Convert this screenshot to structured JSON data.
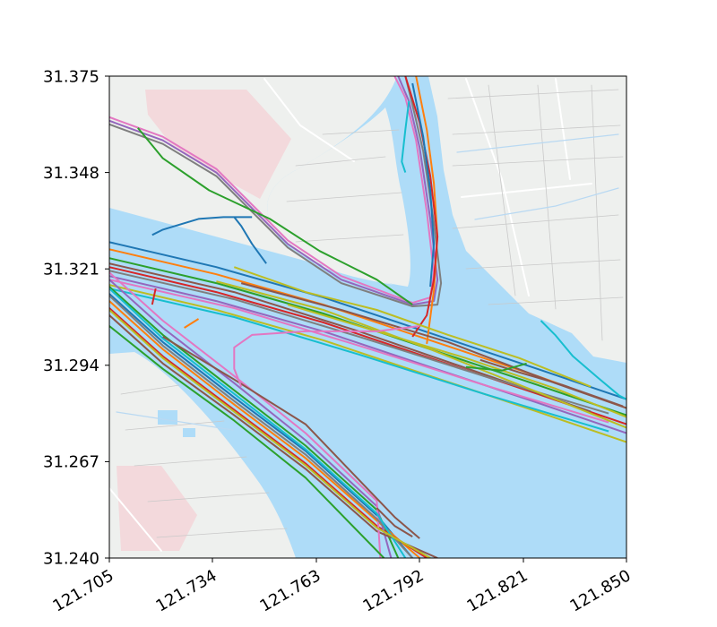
{
  "map": {
    "colors": {
      "water": "#aedcf8",
      "land": "#eef0ee",
      "industrial": "#f3d9dc",
      "road": "#ffffff",
      "minor_road": "#c9c9c9",
      "waterway": "#b9d9f2",
      "axis": "#000000"
    },
    "x_ticks": [
      "121.705",
      "121.734",
      "121.763",
      "121.792",
      "121.821",
      "121.850"
    ],
    "y_ticks": [
      "31.375",
      "31.348",
      "31.321",
      "31.294",
      "31.267",
      "31.240"
    ]
  },
  "chart_data": {
    "type": "line",
    "title": "",
    "xlabel": "",
    "ylabel": "",
    "xlim": [
      121.705,
      121.85
    ],
    "ylim": [
      31.24,
      31.375
    ],
    "grid": false,
    "legend": "none",
    "palette": [
      "#1f77b4",
      "#ff7f0e",
      "#2ca02c",
      "#d62728",
      "#9467bd",
      "#8c564b",
      "#e377c2",
      "#7f7f7f",
      "#bcbd22",
      "#17becf"
    ],
    "series": [
      {
        "color": "#ff7f0e",
        "x": [
          121.705,
          121.735,
          121.765,
          121.795,
          121.825,
          121.85
        ],
        "y": [
          31.3265,
          31.3195,
          31.311,
          31.301,
          31.291,
          31.282
        ]
      },
      {
        "color": "#2ca02c",
        "x": [
          121.705,
          121.735,
          121.765,
          121.795,
          121.825,
          121.85
        ],
        "y": [
          31.324,
          31.317,
          31.3085,
          31.2985,
          31.2885,
          31.28
        ]
      },
      {
        "color": "#d62728",
        "x": [
          121.705,
          121.735,
          121.765,
          121.795,
          121.825,
          121.85
        ],
        "y": [
          31.3215,
          31.3145,
          31.306,
          31.296,
          31.286,
          31.2775
        ]
      },
      {
        "color": "#9467bd",
        "x": [
          121.705,
          121.735,
          121.765,
          121.795,
          121.825,
          121.85
        ],
        "y": [
          31.319,
          31.312,
          31.3035,
          31.2935,
          31.2835,
          31.275
        ]
      },
      {
        "color": "#bcbd22",
        "x": [
          121.705,
          121.735,
          121.765,
          121.795,
          121.825,
          121.85
        ],
        "y": [
          31.3165,
          31.3095,
          31.301,
          31.291,
          31.281,
          31.2725
        ]
      },
      {
        "color": "#1f77b4",
        "x": [
          121.705,
          121.735,
          121.765,
          121.795,
          121.825,
          121.85
        ],
        "y": [
          31.3285,
          31.3215,
          31.313,
          31.303,
          31.293,
          31.2845
        ]
      },
      {
        "color": "#8c564b",
        "x": [
          121.705,
          121.74,
          121.775,
          121.81,
          121.84
        ],
        "y": [
          31.3225,
          31.3145,
          31.3035,
          31.2915,
          31.281
        ]
      },
      {
        "color": "#e377c2",
        "x": [
          121.705,
          121.74,
          121.775,
          121.81,
          121.845
        ],
        "y": [
          31.318,
          31.31,
          31.2995,
          31.2885,
          31.278
        ]
      },
      {
        "color": "#7f7f7f",
        "x": [
          121.705,
          121.74,
          121.775,
          121.81,
          121.845
        ],
        "y": [
          31.3205,
          31.3125,
          31.302,
          31.291,
          31.2805
        ]
      },
      {
        "color": "#17becf",
        "x": [
          121.705,
          121.74,
          121.775,
          121.81,
          121.845
        ],
        "y": [
          31.3155,
          31.3075,
          31.297,
          31.286,
          31.2755
        ]
      },
      {
        "color": "#bcbd22",
        "x": [
          121.735,
          121.765,
          121.795,
          121.825,
          121.85
        ],
        "y": [
          31.3175,
          31.3095,
          31.2985,
          31.2865,
          31.2765
        ]
      },
      {
        "color": "#bcbd22",
        "x": [
          121.755,
          121.78,
          121.805,
          121.83,
          121.85
        ],
        "y": [
          31.311,
          31.3035,
          31.296,
          31.2875,
          31.2795
        ]
      },
      {
        "color": "#1f77b4",
        "x": [
          121.705,
          121.72,
          121.74,
          121.76,
          121.78,
          121.79
        ],
        "y": [
          31.314,
          31.3005,
          31.285,
          31.27,
          31.252,
          31.24
        ]
      },
      {
        "color": "#ff7f0e",
        "x": [
          121.705,
          121.72,
          121.74,
          121.76,
          121.78,
          121.792
        ],
        "y": [
          31.312,
          31.2985,
          31.283,
          31.268,
          31.2505,
          31.24
        ]
      },
      {
        "color": "#2ca02c",
        "x": [
          121.705,
          121.72,
          121.74,
          121.76,
          121.78,
          121.786
        ],
        "y": [
          31.316,
          31.3025,
          31.287,
          31.2715,
          31.2535,
          31.24
        ]
      },
      {
        "color": "#d62728",
        "x": [
          121.705,
          121.72,
          121.74,
          121.76,
          121.78,
          121.794
        ],
        "y": [
          31.31,
          31.2965,
          31.2815,
          31.2665,
          31.249,
          31.24
        ]
      },
      {
        "color": "#9467bd",
        "x": [
          121.705,
          121.72,
          121.74,
          121.76,
          121.78,
          121.784
        ],
        "y": [
          31.318,
          31.3045,
          31.289,
          31.273,
          31.2545,
          31.24
        ]
      },
      {
        "color": "#8c564b",
        "x": [
          121.705,
          121.72,
          121.74,
          121.76,
          121.78,
          121.797
        ],
        "y": [
          31.308,
          31.2945,
          31.28,
          31.265,
          31.2475,
          31.24
        ]
      },
      {
        "color": "#e377c2",
        "x": [
          121.705,
          121.72,
          121.74,
          121.76,
          121.78,
          121.781
        ],
        "y": [
          31.32,
          31.3065,
          31.291,
          31.275,
          31.256,
          31.24
        ]
      },
      {
        "color": "#7f7f7f",
        "x": [
          121.705,
          121.72,
          121.74,
          121.76,
          121.78,
          121.79
        ],
        "y": [
          31.3135,
          31.2995,
          31.284,
          31.269,
          31.251,
          31.24
        ]
      },
      {
        "color": "#17becf",
        "x": [
          121.705,
          121.72,
          121.74,
          121.76,
          121.78,
          121.788
        ],
        "y": [
          31.3155,
          31.3015,
          31.286,
          31.2705,
          31.2525,
          31.24
        ]
      },
      {
        "color": "#bcbd22",
        "x": [
          121.705,
          121.72,
          121.74,
          121.76,
          121.78,
          121.795
        ],
        "y": [
          31.3095,
          31.296,
          31.281,
          31.266,
          31.2485,
          31.24
        ]
      },
      {
        "color": "#2ca02c",
        "x": [
          121.705,
          121.72,
          121.74,
          121.76,
          121.782
        ],
        "y": [
          31.305,
          31.293,
          31.2785,
          31.2625,
          31.24
        ]
      },
      {
        "color": "#8c564b",
        "x": [
          121.72,
          121.74,
          121.76,
          121.785,
          121.792
        ],
        "y": [
          31.302,
          31.29,
          31.2775,
          31.2515,
          31.2455
        ]
      },
      {
        "color": "#9467bd",
        "x": [
          121.705,
          121.72,
          121.735,
          121.745,
          121.755,
          121.77,
          121.79,
          121.796,
          121.797,
          121.795,
          121.792,
          121.789,
          121.786
        ],
        "y": [
          31.3625,
          31.357,
          31.348,
          31.338,
          31.328,
          31.318,
          31.311,
          31.312,
          31.318,
          31.335,
          31.355,
          31.368,
          31.375
        ]
      },
      {
        "color": "#e377c2",
        "x": [
          121.705,
          121.72,
          121.735,
          121.745,
          121.755,
          121.77,
          121.79,
          121.795,
          121.796,
          121.794,
          121.791,
          121.788,
          121.785
        ],
        "y": [
          31.3635,
          31.358,
          31.349,
          31.339,
          31.329,
          31.319,
          31.3115,
          31.313,
          31.32,
          31.337,
          31.357,
          31.369,
          31.375
        ]
      },
      {
        "color": "#7f7f7f",
        "x": [
          121.705,
          121.72,
          121.735,
          121.745,
          121.755,
          121.77,
          121.79,
          121.797,
          121.798,
          121.796,
          121.793,
          121.79,
          121.788
        ],
        "y": [
          31.3615,
          31.356,
          31.347,
          31.337,
          31.327,
          31.317,
          31.3105,
          31.311,
          31.317,
          31.334,
          31.354,
          31.367,
          31.375
        ]
      },
      {
        "color": "#ff7f0e",
        "x": [
          121.791,
          121.794,
          121.796,
          121.797,
          121.796,
          121.794
        ],
        "y": [
          31.375,
          31.36,
          31.345,
          31.33,
          31.315,
          31.3
        ]
      },
      {
        "color": "#d62728",
        "x": [
          121.788,
          121.792,
          121.795,
          121.797,
          121.796,
          121.794,
          121.79
        ],
        "y": [
          31.375,
          31.362,
          31.347,
          31.33,
          31.318,
          31.308,
          31.302
        ]
      },
      {
        "color": "#1f77b4",
        "x": [
          121.79,
          121.793,
          121.795,
          121.796,
          121.795
        ],
        "y": [
          31.373,
          31.358,
          31.343,
          31.328,
          31.316
        ]
      },
      {
        "color": "#17becf",
        "x": [
          121.789,
          121.788,
          121.787,
          121.788
        ],
        "y": [
          31.368,
          31.36,
          31.351,
          31.348
        ]
      },
      {
        "color": "#2ca02c",
        "x": [
          121.713,
          121.72,
          121.733,
          121.75,
          121.764,
          121.78,
          121.79
        ],
        "y": [
          31.3605,
          31.352,
          31.343,
          31.335,
          31.326,
          31.318,
          31.311
        ]
      },
      {
        "color": "#1f77b4",
        "x": [
          121.717,
          121.72,
          121.73,
          121.737,
          121.745
        ],
        "y": [
          31.3305,
          31.332,
          31.335,
          31.3355,
          31.3355
        ]
      },
      {
        "color": "#1f77b4",
        "x": [
          121.74,
          121.742,
          121.745,
          121.749
        ],
        "y": [
          31.3355,
          31.333,
          31.328,
          31.3225
        ]
      },
      {
        "color": "#bcbd22",
        "x": [
          121.74,
          121.76,
          121.78,
          121.8,
          121.82,
          121.84
        ],
        "y": [
          31.3215,
          31.3145,
          31.3095,
          31.3025,
          31.296,
          31.288
        ]
      },
      {
        "color": "#8c564b",
        "x": [
          121.742,
          121.77,
          121.8,
          121.83,
          121.85
        ],
        "y": [
          31.317,
          31.3095,
          31.3005,
          31.289,
          31.282
        ]
      },
      {
        "color": "#e377c2",
        "x": [
          121.742,
          121.74,
          121.74,
          121.745,
          121.76,
          121.78,
          121.792
        ],
        "y": [
          31.288,
          31.293,
          31.299,
          31.3025,
          31.3035,
          31.3035,
          31.305
        ]
      },
      {
        "color": "#8c564b",
        "x": [
          121.809,
          121.82,
          121.832,
          121.842,
          121.849
        ],
        "y": [
          31.2955,
          31.292,
          31.2885,
          31.285,
          31.2825
        ]
      },
      {
        "color": "#17becf",
        "x": [
          121.826,
          121.83,
          121.835,
          121.842,
          121.848,
          121.85
        ],
        "y": [
          31.3065,
          31.3025,
          31.2965,
          31.2905,
          31.2855,
          31.2845
        ]
      },
      {
        "color": "#2ca02c",
        "x": [
          121.805,
          121.815,
          121.822
        ],
        "y": [
          31.2935,
          31.2925,
          31.2945
        ]
      },
      {
        "color": "#ff7f0e",
        "x": [
          121.726,
          121.73
        ],
        "y": [
          31.3045,
          31.307
        ]
      },
      {
        "color": "#d62728",
        "x": [
          121.717,
          121.718
        ],
        "y": [
          31.311,
          31.3155
        ]
      },
      {
        "color": "#8c564b",
        "x": [
          121.78,
          121.785,
          121.79
        ],
        "y": [
          31.254,
          31.249,
          31.246
        ]
      }
    ]
  }
}
